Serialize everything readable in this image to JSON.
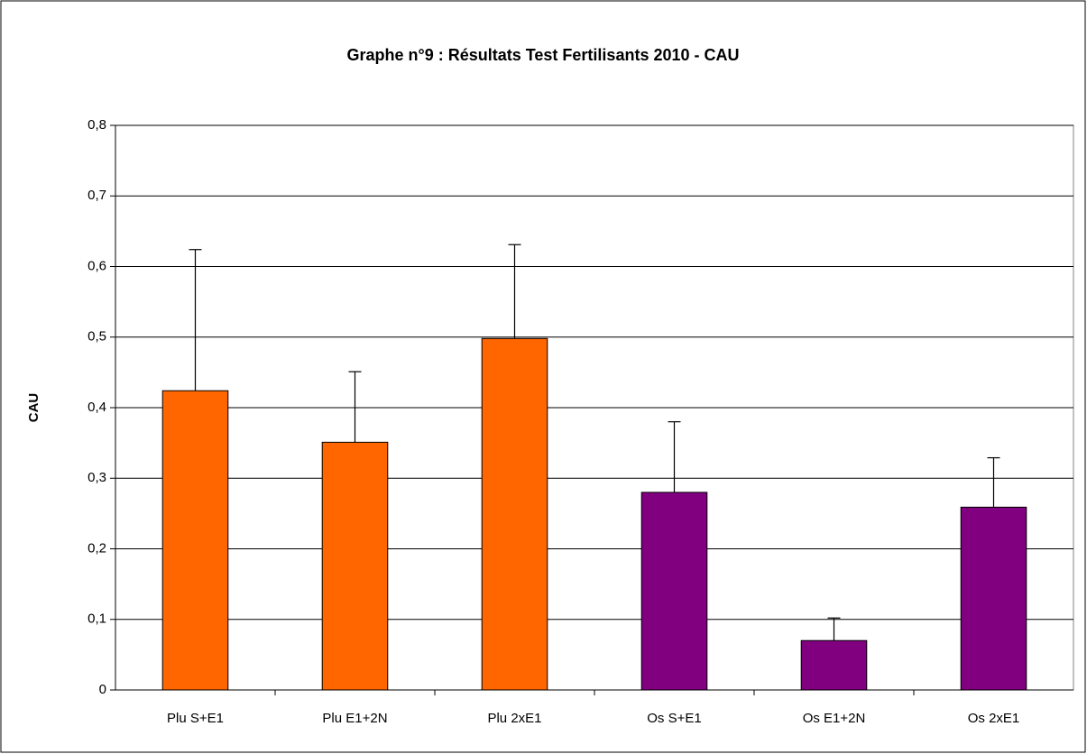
{
  "chart_data": {
    "type": "bar",
    "title": "Graphe n°9 : Résultats Test Fertilisants 2010 - CAU",
    "y_label": "CAU",
    "categories": [
      "Plu S+E1",
      "Plu E1+2N",
      "Plu 2xE1",
      "Os S+E1",
      "Os E1+2N",
      "Os 2xE1"
    ],
    "values": [
      0.424,
      0.351,
      0.498,
      0.28,
      0.07,
      0.259
    ],
    "errors": [
      0.2,
      0.1,
      0.133,
      0.1,
      0.032,
      0.07
    ],
    "colors": [
      "#ff6600",
      "#ff6600",
      "#ff6600",
      "#800080",
      "#800080",
      "#800080"
    ],
    "ylim": [
      0,
      0.8
    ],
    "yticks": [
      0,
      {
        "value": 0.1,
        "label": "0,1"
      },
      {
        "value": 0.2,
        "label": "0,2"
      },
      {
        "value": 0.3,
        "label": "0,3"
      },
      {
        "value": 0.4,
        "label": "0,4"
      },
      {
        "value": 0.5,
        "label": "0,5"
      },
      {
        "value": 0.6,
        "label": "0,6"
      },
      {
        "value": 0.7,
        "label": "0,7"
      },
      {
        "value": 0.8,
        "label": "0,8"
      }
    ],
    "grid": true
  }
}
